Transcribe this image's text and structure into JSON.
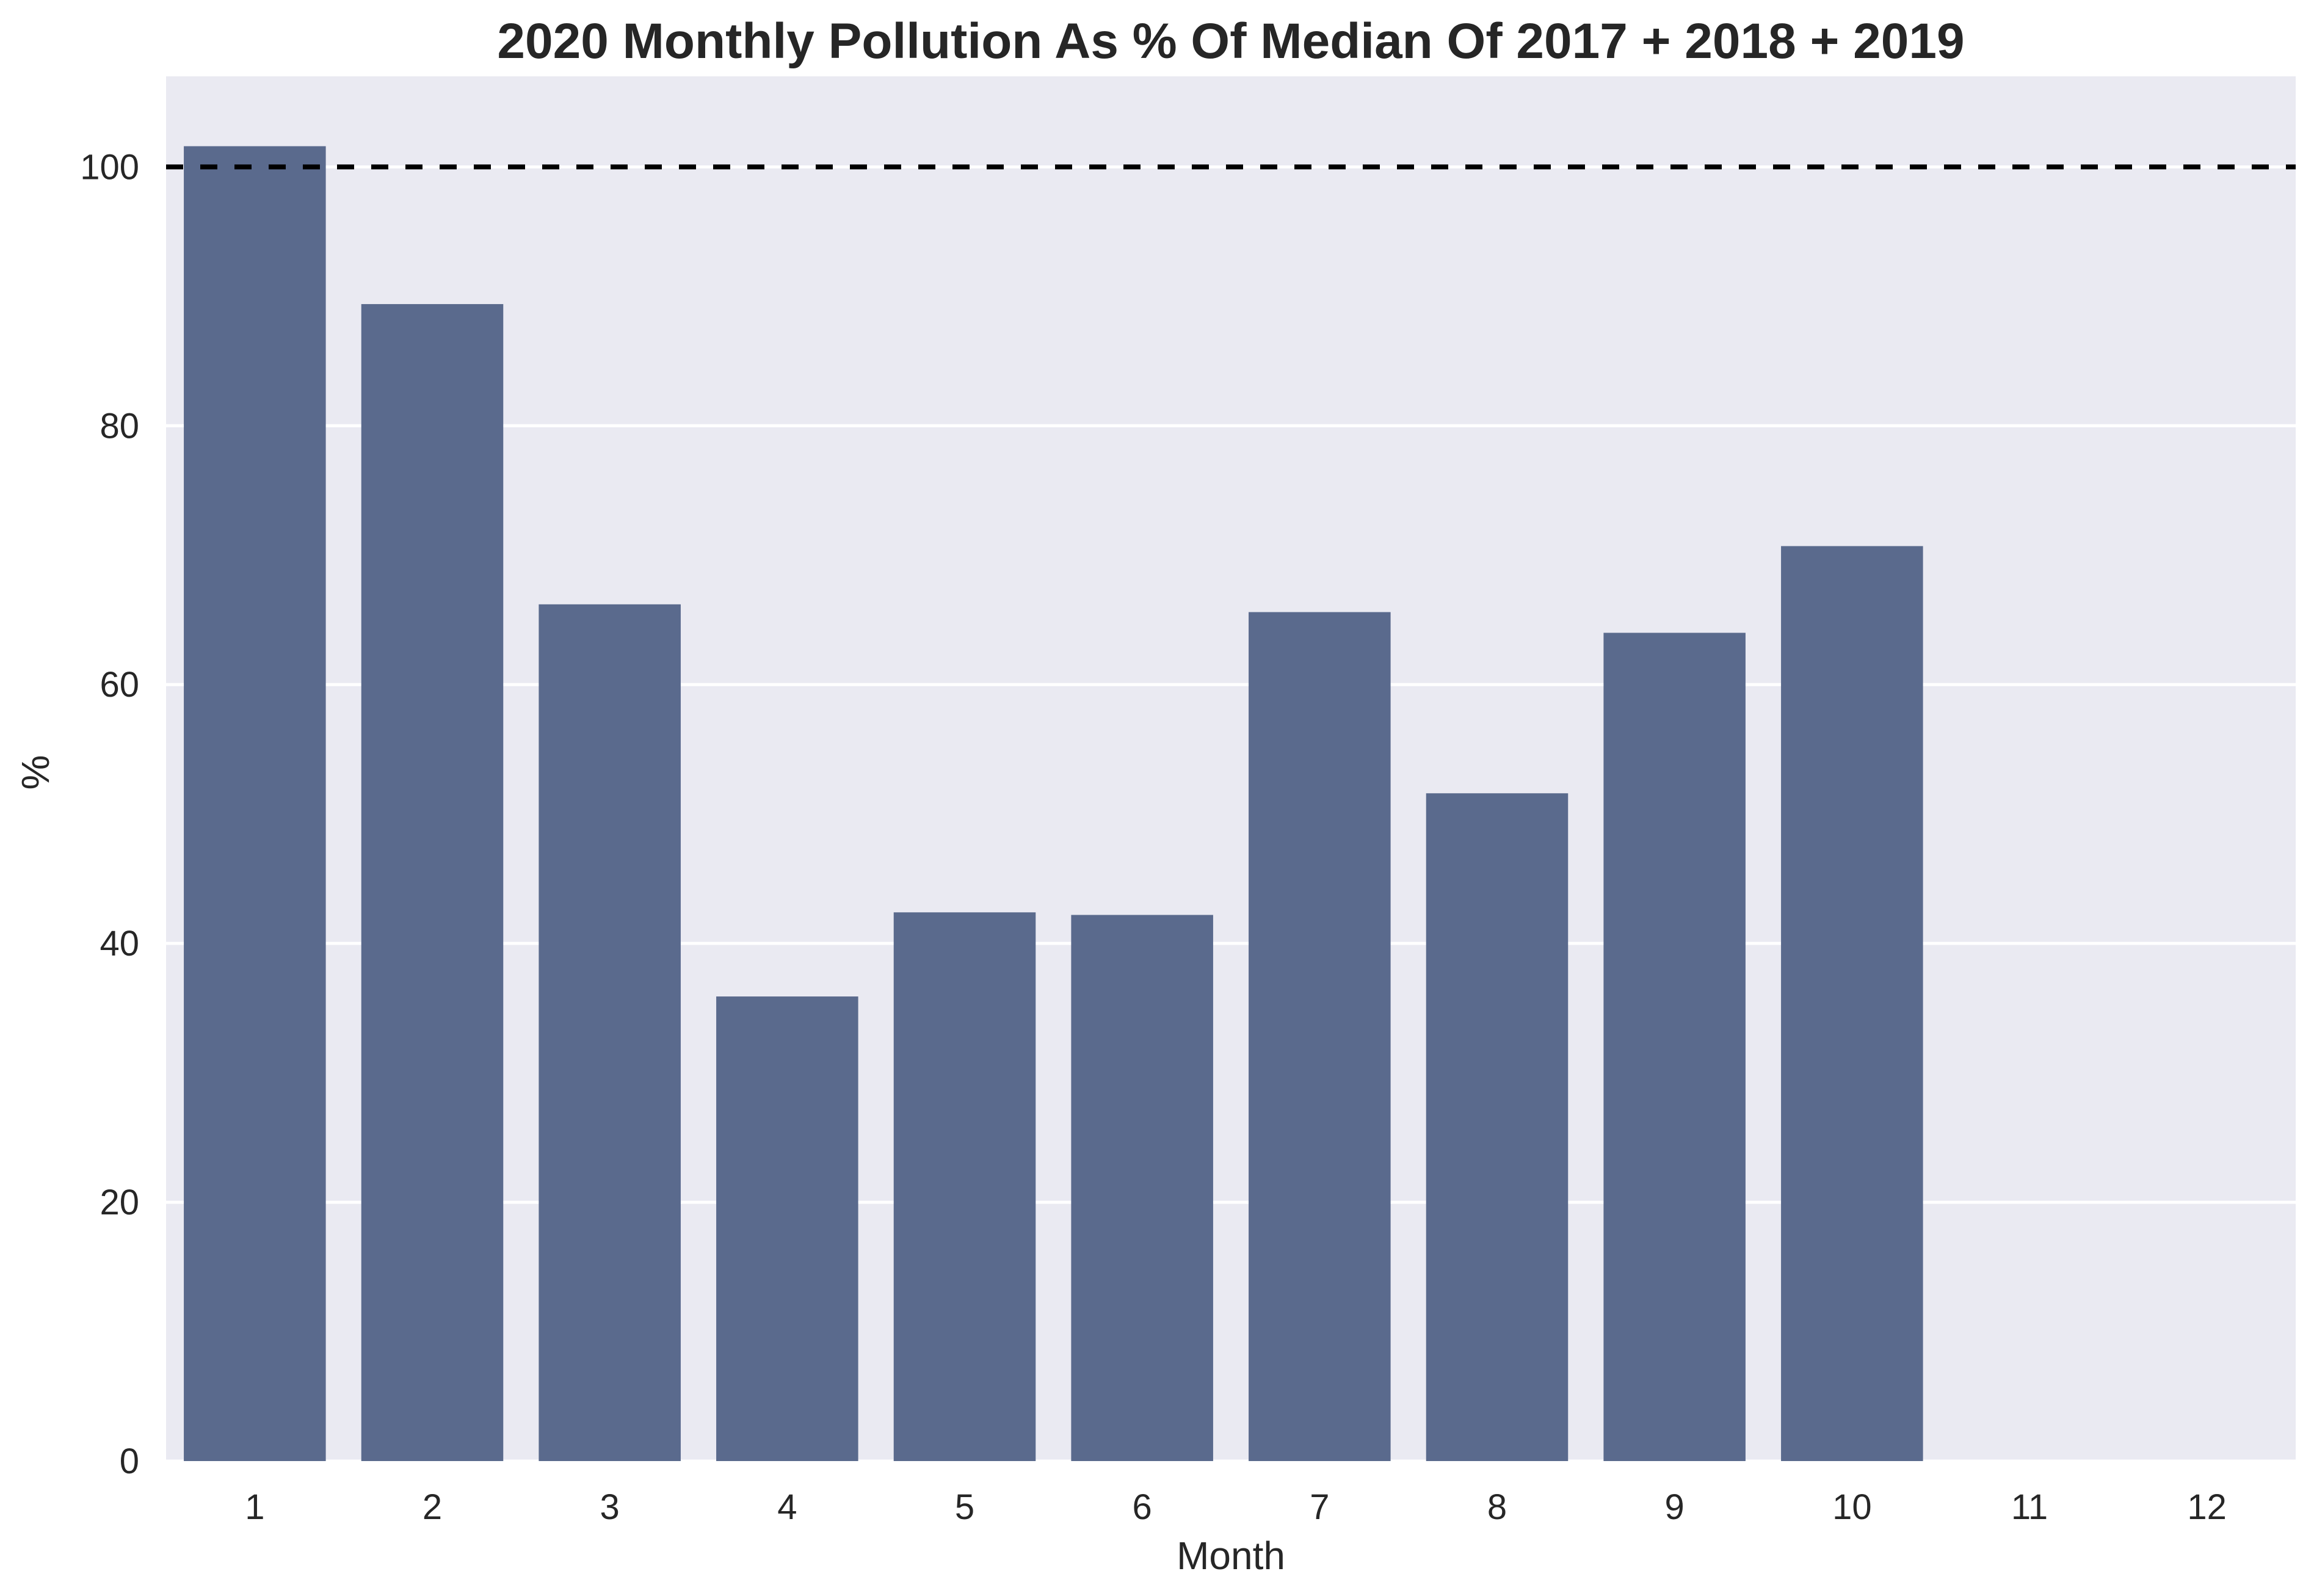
{
  "chart_data": {
    "type": "bar",
    "title": "2020 Monthly Pollution As % Of Median Of 2017 + 2018 + 2019",
    "xlabel": "Month",
    "ylabel": "%",
    "categories": [
      "1",
      "2",
      "3",
      "4",
      "5",
      "6",
      "7",
      "8",
      "9",
      "10",
      "11",
      "12"
    ],
    "values": [
      101.6,
      89.4,
      66.2,
      35.9,
      42.4,
      42.2,
      65.6,
      51.6,
      64.0,
      70.7,
      null,
      null
    ],
    "ylim": [
      0,
      107
    ],
    "yticks": [
      0,
      20,
      40,
      60,
      80,
      100
    ],
    "reference_line": {
      "y": 100,
      "style": "dashed",
      "color": "#000000"
    },
    "grid": true,
    "colors": {
      "bar": "#5a6a8d",
      "plot_background": "#eaeaf2",
      "grid": "#ffffff"
    }
  }
}
